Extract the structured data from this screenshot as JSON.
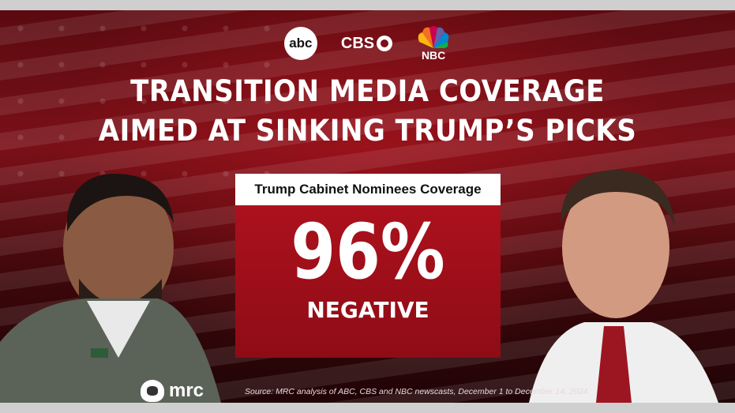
{
  "logos": {
    "abc": "abc",
    "cbs": "CBS",
    "nbc": "NBC"
  },
  "headline": {
    "line1": "TRANSITION MEDIA COVERAGE",
    "line2": "AIMED AT SINKING TRUMP’S PICKS"
  },
  "card": {
    "title": "Trump Cabinet Nominees Coverage",
    "value": "96%",
    "label": "NEGATIVE"
  },
  "footer": {
    "brand": "mrc",
    "source": "Source: MRC analysis of ABC, CBS and NBC  newscasts, December 1 to December 14, 2024."
  },
  "colors": {
    "card_red": "#b2121e",
    "background_dark_red": "#5a0a10",
    "text_white": "#ffffff"
  }
}
